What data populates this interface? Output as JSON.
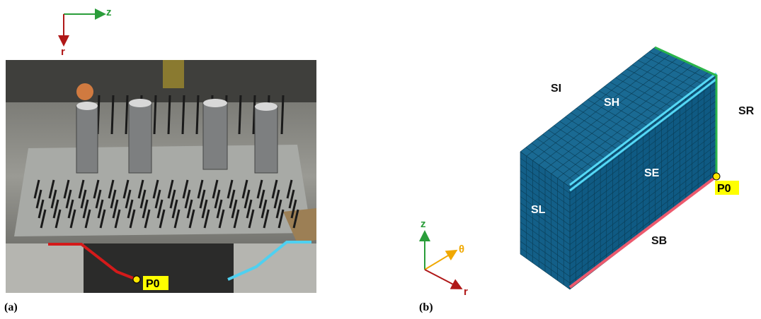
{
  "panel_a": {
    "axes": {
      "horizontal": "z",
      "vertical": "r"
    },
    "marker": "P0",
    "caption": "(a)"
  },
  "panel_b": {
    "axes": {
      "vertical": "z",
      "depth": "θ",
      "horizontal": "r"
    },
    "surfaces": {
      "top_back": "SI",
      "top": "SH",
      "right": "SR",
      "front": "SE",
      "left": "SL",
      "bottom": "SB"
    },
    "marker": "P0",
    "caption": "(b)"
  }
}
